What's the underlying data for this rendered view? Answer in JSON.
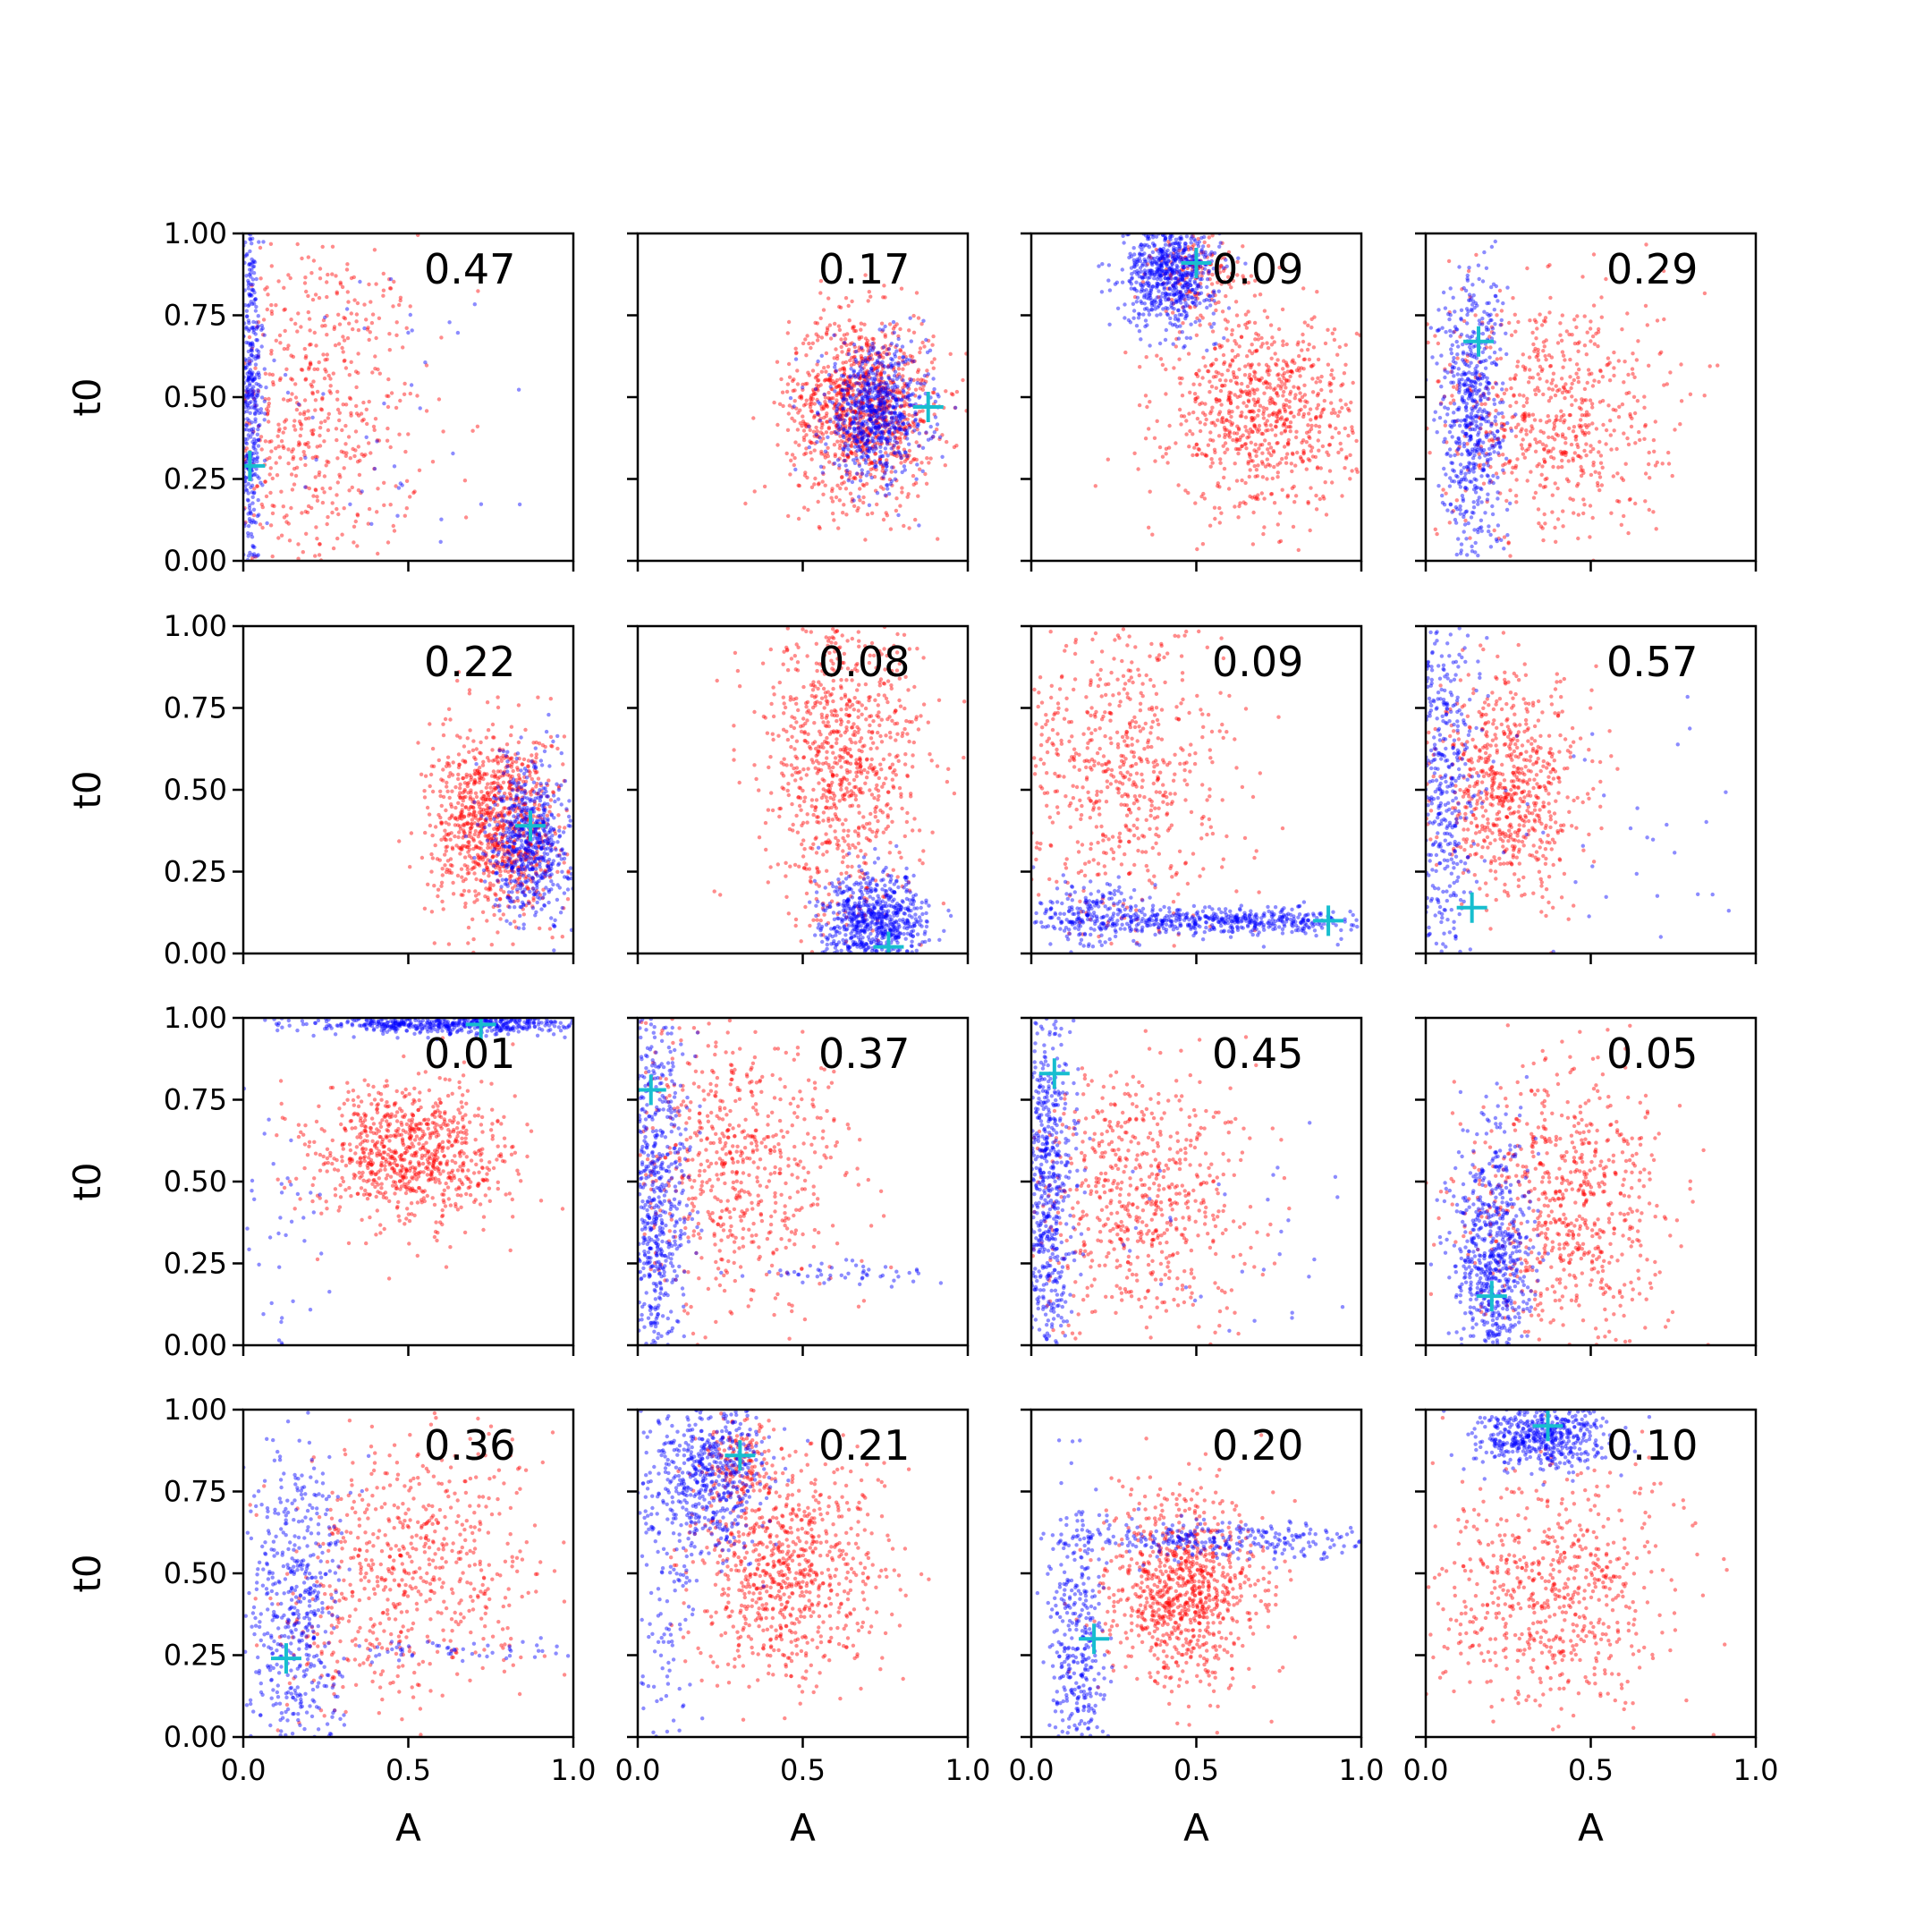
{
  "chart_data": {
    "type": "scatter",
    "grid": false,
    "xlabel": "A",
    "ylabel": "t0",
    "xlim": [
      0,
      1
    ],
    "ylim": [
      0,
      1
    ],
    "xticks": [
      "0.0",
      "0.5",
      "1.0"
    ],
    "yticks": [
      "0.00",
      "0.25",
      "0.50",
      "0.75",
      "1.00"
    ],
    "colors": {
      "red_series": "#ff0000",
      "blue_series": "#0000ff",
      "marker": "#17becf"
    },
    "panels": [
      {
        "label": "0.47",
        "marker": [
          0.02,
          0.29
        ]
      },
      {
        "label": "0.17",
        "marker": [
          0.88,
          0.47
        ]
      },
      {
        "label": "0.09",
        "marker": [
          0.5,
          0.91
        ]
      },
      {
        "label": "0.29",
        "marker": [
          0.16,
          0.67
        ]
      },
      {
        "label": "0.22",
        "marker": [
          0.87,
          0.39
        ]
      },
      {
        "label": "0.08",
        "marker": [
          0.76,
          0.02
        ]
      },
      {
        "label": "0.09",
        "marker": [
          0.9,
          0.1
        ]
      },
      {
        "label": "0.57",
        "marker": [
          0.14,
          0.14
        ]
      },
      {
        "label": "0.01",
        "marker": [
          0.72,
          0.98
        ]
      },
      {
        "label": "0.37",
        "marker": [
          0.04,
          0.78
        ]
      },
      {
        "label": "0.45",
        "marker": [
          0.07,
          0.83
        ]
      },
      {
        "label": "0.05",
        "marker": [
          0.2,
          0.15
        ]
      },
      {
        "label": "0.36",
        "marker": [
          0.13,
          0.24
        ]
      },
      {
        "label": "0.21",
        "marker": [
          0.31,
          0.86
        ]
      },
      {
        "label": "0.20",
        "marker": [
          0.19,
          0.3
        ]
      },
      {
        "label": "0.10",
        "marker": [
          0.37,
          0.95
        ]
      }
    ]
  }
}
